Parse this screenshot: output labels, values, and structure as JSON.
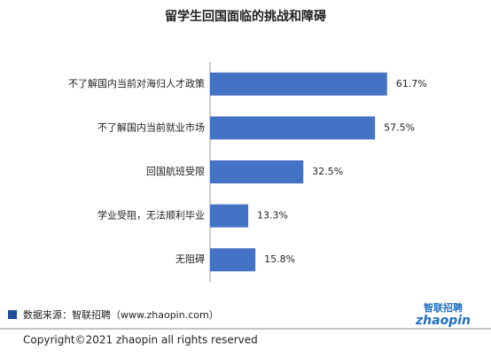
{
  "chart_data": {
    "type": "barh",
    "title": "留学生回国面临的挑战和障碍",
    "categories": [
      "不了解国内当前对海归人才政策",
      "不了解国内当前就业市场",
      "回国航班受限",
      "学业受阻，无法顺利毕业",
      "无阻碍"
    ],
    "values": [
      61.7,
      57.5,
      32.5,
      13.3,
      15.8
    ],
    "value_labels": [
      "61.7%",
      "57.5%",
      "32.5%",
      "13.3%",
      "15.8%"
    ],
    "color": "#4472c4",
    "xlim": [
      0,
      80
    ]
  },
  "source": "数据来源：智联招聘（www.zhaopin.com）",
  "logo": {
    "cn": "智联招聘",
    "en": "zhaopin"
  },
  "copyright": "Copyright©2021 zhaopin all rights reserved"
}
